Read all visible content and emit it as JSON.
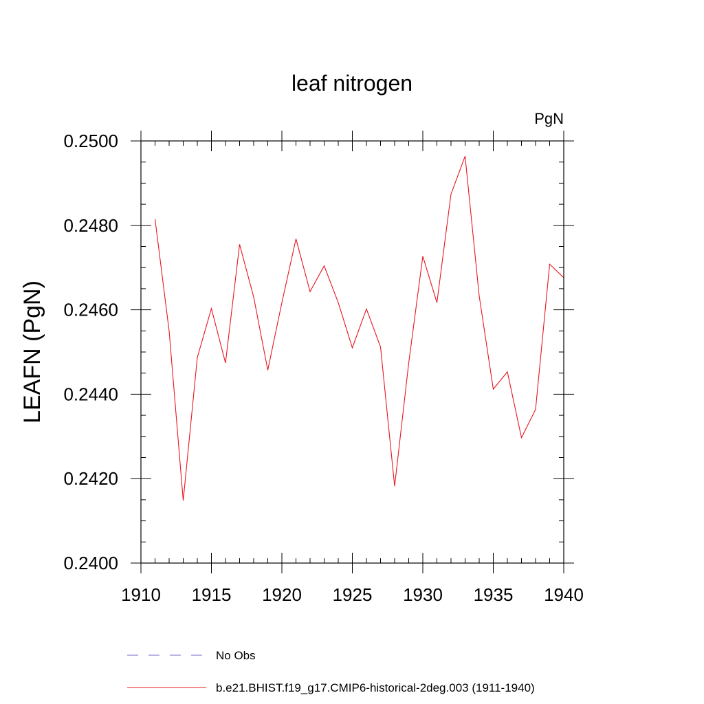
{
  "chart_data": {
    "type": "line",
    "title": "leaf nitrogen",
    "units": "PgN",
    "ylabel": "LEAFN  (PgN)",
    "xlabel": "",
    "xlim": [
      1910,
      1940
    ],
    "ylim": [
      0.24,
      0.25
    ],
    "xticks": [
      "1910",
      "1915",
      "1920",
      "1925",
      "1930",
      "1935",
      "1940"
    ],
    "yticks": [
      "0.2400",
      "0.2420",
      "0.2440",
      "0.2460",
      "0.2480",
      "0.2500"
    ],
    "legend_position": "bottom",
    "series": [
      {
        "name": "No Obs",
        "color": "#7b68c8",
        "style": "dashed",
        "x": [],
        "values": []
      },
      {
        "name": "b.e21.BHIST.f19_g17.CMIP6-historical-2deg.003 (1911-1940)",
        "color": "#e8141e",
        "style": "solid",
        "x": [
          1911,
          1912,
          1913,
          1914,
          1915,
          1916,
          1917,
          1918,
          1919,
          1920,
          1921,
          1922,
          1923,
          1924,
          1925,
          1926,
          1927,
          1928,
          1929,
          1930,
          1931,
          1932,
          1933,
          1934,
          1935,
          1936,
          1937,
          1938,
          1939,
          1940
        ],
        "values": [
          0.24815,
          0.2455,
          0.24148,
          0.24487,
          0.24603,
          0.24474,
          0.24755,
          0.2463,
          0.24457,
          0.24617,
          0.24768,
          0.24643,
          0.24704,
          0.24617,
          0.2451,
          0.24602,
          0.24512,
          0.24182,
          0.24474,
          0.24727,
          0.24617,
          0.24874,
          0.24964,
          0.24633,
          0.24412,
          0.24453,
          0.24297,
          0.24364,
          0.24708,
          0.24676
        ]
      }
    ]
  }
}
